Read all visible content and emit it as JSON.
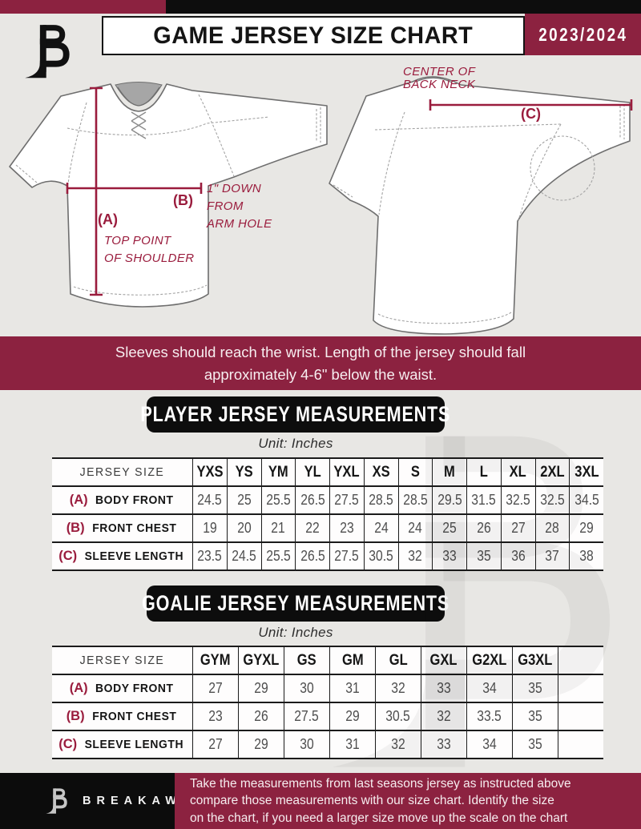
{
  "colors": {
    "maroon": "#8C2240",
    "black": "#0D0D0D",
    "annotation": "#9A1C3D",
    "page_bg": "#E8E7E4"
  },
  "header": {
    "title": "GAME JERSEY SIZE CHART",
    "season": "2023/2024"
  },
  "diagrams": {
    "front": {
      "a_label": "(A)",
      "a_note": [
        "TOP POINT",
        "OF SHOULDER"
      ],
      "b_label": "(B)",
      "b_note": [
        "1\" DOWN",
        "FROM",
        "ARM HOLE"
      ]
    },
    "back": {
      "c_label": "(C)",
      "neck_note": [
        "CENTER OF",
        "BACK NECK"
      ]
    }
  },
  "wrist_banner": {
    "line1": "Sleeves should reach the wrist. Length of the jersey should fall",
    "line2": "approximately 4-6\" below the waist."
  },
  "player": {
    "title": "PLAYER JERSEY MEASUREMENTS",
    "unit": "Unit: Inches",
    "table": {
      "corner_label": "JERSEY SIZE",
      "sizes": [
        "YXS",
        "YS",
        "YM",
        "YL",
        "YXL",
        "XS",
        "S",
        "M",
        "L",
        "XL",
        "2XL",
        "3XL"
      ],
      "rows": [
        {
          "key": "(A)",
          "label": "BODY FRONT",
          "values": [
            "24.5",
            "25",
            "25.5",
            "26.5",
            "27.5",
            "28.5",
            "28.5",
            "29.5",
            "31.5",
            "32.5",
            "32.5",
            "34.5"
          ]
        },
        {
          "key": "(B)",
          "label": "FRONT CHEST",
          "values": [
            "19",
            "20",
            "21",
            "22",
            "23",
            "24",
            "24",
            "25",
            "26",
            "27",
            "28",
            "29"
          ]
        },
        {
          "key": "(C)",
          "label": "SLEEVE LENGTH",
          "values": [
            "23.5",
            "24.5",
            "25.5",
            "26.5",
            "27.5",
            "30.5",
            "32",
            "33",
            "35",
            "36",
            "37",
            "38"
          ]
        }
      ]
    }
  },
  "goalie": {
    "title": "GOALIE JERSEY MEASUREMENTS",
    "unit": "Unit: Inches",
    "table": {
      "corner_label": "JERSEY SIZE",
      "sizes": [
        "GYM",
        "GYXL",
        "GS",
        "GM",
        "GL",
        "GXL",
        "G2XL",
        "G3XL",
        ""
      ],
      "rows": [
        {
          "key": "(A)",
          "label": "BODY FRONT",
          "values": [
            "27",
            "29",
            "30",
            "31",
            "32",
            "33",
            "34",
            "35",
            ""
          ]
        },
        {
          "key": "(B)",
          "label": "FRONT CHEST",
          "values": [
            "23",
            "26",
            "27.5",
            "29",
            "30.5",
            "32",
            "33.5",
            "35",
            ""
          ]
        },
        {
          "key": "(C)",
          "label": "SLEEVE LENGTH",
          "values": [
            "27",
            "29",
            "30",
            "31",
            "32",
            "33",
            "34",
            "35",
            ""
          ]
        }
      ]
    }
  },
  "footer": {
    "wordmark": "BREAKAWAY",
    "lines": [
      "Take the measurements from last seasons jersey as instructed above",
      "compare those measurements  with our size chart. Identify the size",
      "on the chart, if you need a larger size move up the scale on the chart"
    ]
  }
}
